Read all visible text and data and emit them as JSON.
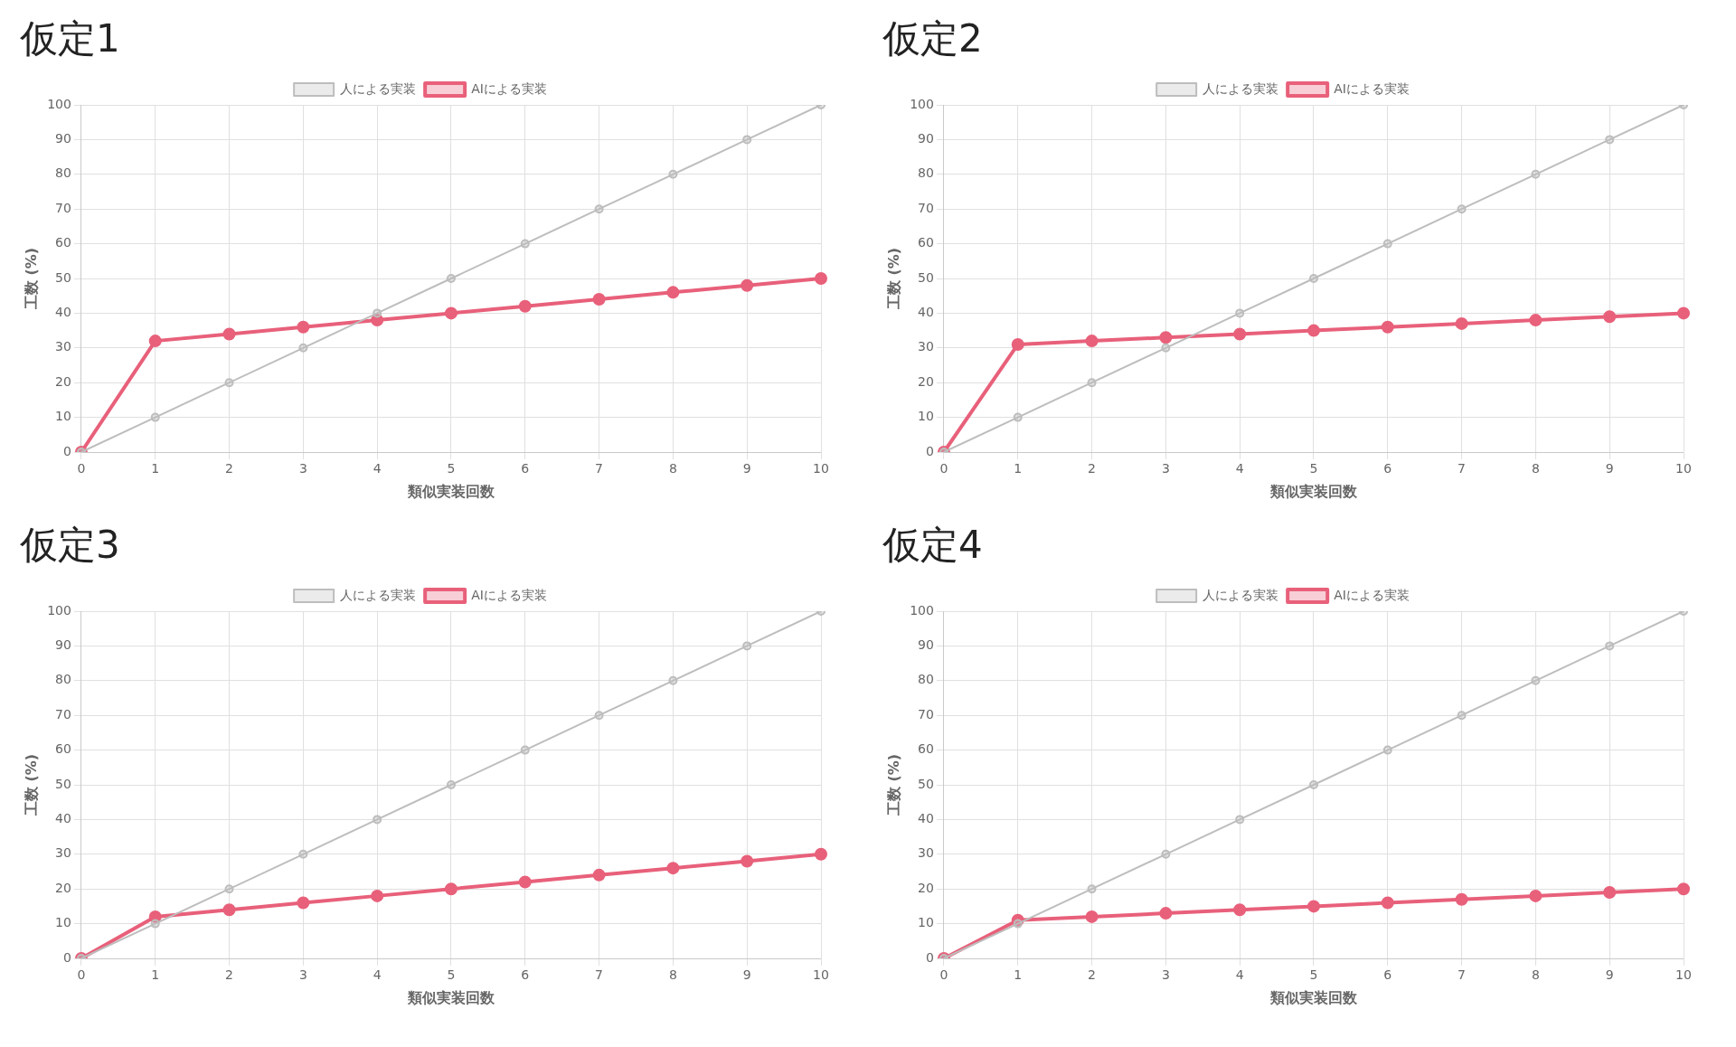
{
  "chart_data": [
    {
      "type": "line",
      "title": "仮定1",
      "xlabel": "類似実装回数",
      "ylabel": "工数 (%)",
      "categories": [
        "0",
        "1",
        "2",
        "3",
        "4",
        "5",
        "6",
        "7",
        "8",
        "9",
        "10"
      ],
      "ylim": [
        0,
        100
      ],
      "yticks": [
        0,
        10,
        20,
        30,
        40,
        50,
        60,
        70,
        80,
        90,
        100
      ],
      "grid": true,
      "legend": "top",
      "marker": "circle",
      "series": [
        {
          "name": "人による実装",
          "color": "#bdbdbd",
          "values": [
            0,
            10,
            20,
            30,
            40,
            50,
            60,
            70,
            80,
            90,
            100
          ]
        },
        {
          "name": "AIによる実装",
          "color": "#e8607a",
          "values": [
            0,
            32,
            34,
            36,
            38,
            40,
            42,
            44,
            46,
            48,
            50
          ]
        }
      ]
    },
    {
      "type": "line",
      "title": "仮定2",
      "xlabel": "類似実装回数",
      "ylabel": "工数 (%)",
      "categories": [
        "0",
        "1",
        "2",
        "3",
        "4",
        "5",
        "6",
        "7",
        "8",
        "9",
        "10"
      ],
      "ylim": [
        0,
        100
      ],
      "yticks": [
        0,
        10,
        20,
        30,
        40,
        50,
        60,
        70,
        80,
        90,
        100
      ],
      "grid": true,
      "legend": "top",
      "marker": "circle",
      "series": [
        {
          "name": "人による実装",
          "color": "#bdbdbd",
          "values": [
            0,
            10,
            20,
            30,
            40,
            50,
            60,
            70,
            80,
            90,
            100
          ]
        },
        {
          "name": "AIによる実装",
          "color": "#e8607a",
          "values": [
            0,
            31,
            32,
            33,
            34,
            35,
            36,
            37,
            38,
            39,
            40
          ]
        }
      ]
    },
    {
      "type": "line",
      "title": "仮定3",
      "xlabel": "類似実装回数",
      "ylabel": "工数 (%)",
      "categories": [
        "0",
        "1",
        "2",
        "3",
        "4",
        "5",
        "6",
        "7",
        "8",
        "9",
        "10"
      ],
      "ylim": [
        0,
        100
      ],
      "yticks": [
        0,
        10,
        20,
        30,
        40,
        50,
        60,
        70,
        80,
        90,
        100
      ],
      "grid": true,
      "legend": "top",
      "marker": "circle",
      "series": [
        {
          "name": "人による実装",
          "color": "#bdbdbd",
          "values": [
            0,
            10,
            20,
            30,
            40,
            50,
            60,
            70,
            80,
            90,
            100
          ]
        },
        {
          "name": "AIによる実装",
          "color": "#e8607a",
          "values": [
            0,
            12,
            14,
            16,
            18,
            20,
            22,
            24,
            26,
            28,
            30
          ]
        }
      ]
    },
    {
      "type": "line",
      "title": "仮定4",
      "xlabel": "類似実装回数",
      "ylabel": "工数 (%)",
      "categories": [
        "0",
        "1",
        "2",
        "3",
        "4",
        "5",
        "6",
        "7",
        "8",
        "9",
        "10"
      ],
      "ylim": [
        0,
        100
      ],
      "yticks": [
        0,
        10,
        20,
        30,
        40,
        50,
        60,
        70,
        80,
        90,
        100
      ],
      "grid": true,
      "legend": "top",
      "marker": "circle",
      "series": [
        {
          "name": "人による実装",
          "color": "#bdbdbd",
          "values": [
            0,
            10,
            20,
            30,
            40,
            50,
            60,
            70,
            80,
            90,
            100
          ]
        },
        {
          "name": "AIによる実装",
          "color": "#e8607a",
          "values": [
            0,
            11,
            12,
            13,
            14,
            15,
            16,
            17,
            18,
            19,
            20
          ]
        }
      ]
    }
  ]
}
